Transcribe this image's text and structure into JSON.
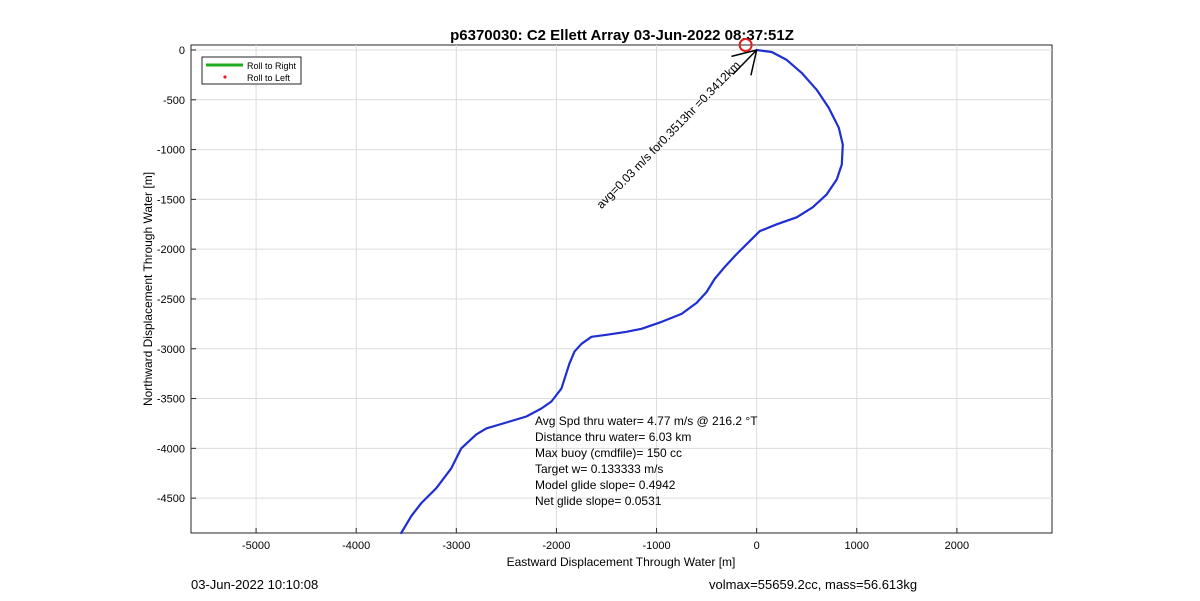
{
  "chart_data": {
    "type": "line",
    "title": "p6370030: C2 Ellett Array 03-Jun-2022 08:37:51Z",
    "xlabel": "Eastward Displacement Through Water [m]",
    "ylabel": "Northward Displacement Through Water [m]",
    "xlim": [
      -5650,
      2950
    ],
    "ylim": [
      -4850,
      50
    ],
    "xticks": [
      -5000,
      -4000,
      -3000,
      -2000,
      -1000,
      0,
      1000,
      2000
    ],
    "yticks": [
      0,
      -500,
      -1000,
      -1500,
      -2000,
      -2500,
      -3000,
      -3500,
      -4000,
      -4500
    ],
    "xtick_labels": [
      "-5000",
      "-4000",
      "-3000",
      "-2000",
      "-1000",
      "0",
      "1000",
      "2000"
    ],
    "ytick_labels": [
      "0",
      "-500",
      "-1000",
      "-1500",
      "-2000",
      "-2500",
      "-3000",
      "-3500",
      "-4000",
      "-4500"
    ],
    "grid": true,
    "legend": {
      "placement": "top-left",
      "entries": [
        {
          "label": "Roll to Right",
          "color": "#22aa22",
          "style": "line"
        },
        {
          "label": "Roll to Left",
          "color": "#e02020",
          "style": "point"
        }
      ]
    },
    "series": [
      {
        "color": "#1f2fd0",
        "x": [
          0,
          150,
          300,
          450,
          600,
          720,
          820,
          860,
          850,
          800,
          700,
          560,
          400,
          200,
          30,
          -100,
          -200,
          -320,
          -420,
          -500,
          -600,
          -750,
          -950,
          -1150,
          -1300,
          -1500,
          -1650,
          -1750,
          -1820,
          -1870,
          -1950,
          -2050,
          -2150,
          -2300,
          -2500,
          -2700,
          -2800,
          -2950,
          -3050,
          -3200,
          -3350,
          -3450,
          -3550
        ],
        "y": [
          0,
          -20,
          -100,
          -230,
          -400,
          -580,
          -780,
          -950,
          -1150,
          -1300,
          -1450,
          -1580,
          -1680,
          -1750,
          -1820,
          -1950,
          -2050,
          -2180,
          -2300,
          -2430,
          -2540,
          -2650,
          -2730,
          -2800,
          -2830,
          -2860,
          -2880,
          -2950,
          -3030,
          -3150,
          -3400,
          -3530,
          -3600,
          -3680,
          -3740,
          -3800,
          -3860,
          -4000,
          -4200,
          -4400,
          -4550,
          -4680,
          -4850
        ]
      }
    ],
    "annotations": {
      "current_marker": {
        "x": -110,
        "y": 50,
        "color": "#e02020"
      },
      "current_vector_text": "avg=0.03 m/s for0.3513hr =0.3412km",
      "current_vector": {
        "x0": -1550,
        "y0": -1600,
        "x1": 0,
        "y1": 0
      }
    }
  },
  "info_box": {
    "line1": "Avg Spd thru water=  4.77 m/s @ 216.2 °T",
    "line2": "Distance thru water=  6.03 km",
    "line3": "Max buoy (cmdfile)= 150 cc",
    "line4": "Target w= 0.133333 m/s",
    "line5": "Model glide slope= 0.4942",
    "line6": "Net glide slope= 0.0531"
  },
  "footer": {
    "date": "03-Jun-2022 10:10:08",
    "vol_mass": "volmax=55659.2cc, mass=56.613kg"
  }
}
